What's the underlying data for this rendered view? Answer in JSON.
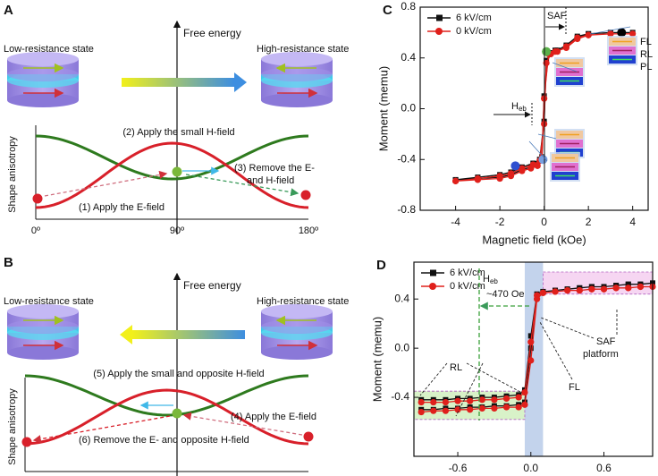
{
  "diagram_a": {
    "label": "A",
    "energy_axis": "Free energy",
    "left_state": "Low-resistance state",
    "right_state": "High-resistance state",
    "vertical_label": "Shape anisotropy",
    "steps": [
      [
        "(1) Apply the E-field"
      ],
      [
        "(2) Apply the small H-field"
      ],
      [
        "(3) Remove the E-",
        "and H-field"
      ]
    ],
    "x_ticks": [
      "0º",
      "90º",
      "180º"
    ]
  },
  "diagram_b": {
    "label": "B",
    "energy_axis": "Free energy",
    "left_state": "Low-resistance state",
    "right_state": "High-resistance state",
    "vertical_label": "Shape anisotropy",
    "steps": [
      [
        "(4) Apply the E-field"
      ],
      [
        "(5) Apply the small and opposite H-field"
      ],
      [
        "(6) Remove the E- and opposite H-field"
      ]
    ],
    "x_ticks": [
      "0º",
      "90º",
      "180º"
    ]
  },
  "chart_data": [
    {
      "type": "line",
      "label": "C",
      "x_label": "Magnetic field (kOe)",
      "y_label": "Moment (memu)",
      "xlim": [
        -5.6,
        4.7
      ],
      "ylim": [
        -0.8,
        0.8
      ],
      "xticks": [
        -4,
        -2,
        0,
        2,
        4
      ],
      "yticks": [
        -0.8,
        -0.4,
        {
          "value": 0,
          "label": "0.0"
        },
        0.4,
        0.8
      ],
      "legend": "upper left",
      "x": [
        -4,
        -3,
        -2,
        -1.5,
        -1,
        -0.5,
        -0.2,
        0,
        0.1,
        0.3,
        0.6,
        1,
        1.5,
        2,
        3,
        4,
        3,
        2,
        1.5,
        1,
        0.5,
        0.2,
        0,
        -0.1,
        -0.3,
        -0.6,
        -1,
        -1.5,
        -2,
        -3,
        -4
      ],
      "series": [
        {
          "name": "6 kV/cm",
          "color": "#111111",
          "marker": "square",
          "values": [
            -0.56,
            -0.54,
            -0.52,
            -0.5,
            -0.46,
            -0.43,
            -0.4,
            -0.1,
            0.38,
            0.44,
            0.46,
            0.5,
            0.57,
            0.59,
            0.6,
            0.6,
            0.6,
            0.59,
            0.56,
            0.49,
            0.46,
            0.44,
            0.1,
            -0.38,
            -0.44,
            -0.46,
            -0.48,
            -0.52,
            -0.54,
            -0.55,
            -0.56
          ]
        },
        {
          "name": "0 kV/cm",
          "color": "#e0201b",
          "marker": "circle",
          "values": [
            -0.57,
            -0.55,
            -0.53,
            -0.51,
            -0.47,
            -0.44,
            -0.41,
            -0.12,
            0.36,
            0.43,
            0.45,
            0.49,
            0.56,
            0.58,
            0.59,
            0.59,
            0.59,
            0.58,
            0.55,
            0.48,
            0.45,
            0.43,
            0.08,
            -0.39,
            -0.45,
            -0.47,
            -0.49,
            -0.53,
            -0.55,
            -0.56,
            -0.57
          ]
        }
      ],
      "highlights": [
        {
          "x": 3.5,
          "y": 0.6,
          "color": "#000000"
        },
        {
          "x": 0.1,
          "y": 0.45,
          "color": "#5ab04a"
        },
        {
          "x": -0.05,
          "y": -0.4,
          "color": "#7aa0e0"
        },
        {
          "x": -1.3,
          "y": -0.45,
          "color": "#3050d0"
        }
      ],
      "annotations": {
        "saf": "SAF",
        "heb_main": "H",
        "heb_sub": "eb",
        "fl": "FL",
        "rl": "RL",
        "pl": "PL"
      }
    },
    {
      "type": "line",
      "label": "D",
      "x_label": "Magnetic field (kOe)",
      "y_label": "Moment (memu)",
      "xlim": [
        -0.96,
        1.0
      ],
      "ylim": [
        -0.88,
        0.7
      ],
      "xticks": [
        -0.6,
        {
          "value": 0,
          "label": "0.0"
        },
        0.6
      ],
      "yticks": [
        -0.4,
        {
          "value": 0,
          "label": "0.0"
        },
        0.4
      ],
      "legend": "upper left",
      "x": [
        -0.9,
        -0.8,
        -0.7,
        -0.6,
        -0.5,
        -0.4,
        -0.3,
        -0.2,
        -0.1,
        -0.05,
        0,
        0.05,
        0.1,
        0.2,
        0.3,
        0.4,
        0.5,
        0.6,
        0.7,
        0.8,
        0.9,
        1.0,
        0.9,
        0.8,
        0.7,
        0.6,
        0.5,
        0.4,
        0.3,
        0.2,
        0.1,
        0.05,
        0,
        -0.05,
        -0.1,
        -0.2,
        -0.3,
        -0.4,
        -0.5,
        -0.6,
        -0.7,
        -0.8,
        -0.9
      ],
      "series": [
        {
          "name": "6 kV/cm",
          "color": "#111111",
          "marker": "square",
          "values": [
            -0.5,
            -0.5,
            -0.49,
            -0.49,
            -0.48,
            -0.48,
            -0.47,
            -0.47,
            -0.46,
            -0.44,
            0.0,
            0.42,
            0.46,
            0.47,
            0.48,
            0.49,
            0.5,
            0.5,
            0.51,
            0.52,
            0.52,
            0.53,
            0.52,
            0.52,
            0.51,
            0.5,
            0.5,
            0.49,
            0.48,
            0.47,
            0.46,
            0.44,
            0.1,
            -0.34,
            -0.38,
            -0.39,
            -0.4,
            -0.4,
            -0.41,
            -0.41,
            -0.42,
            -0.42,
            -0.42
          ]
        },
        {
          "name": "0 kV/cm",
          "color": "#e0201b",
          "marker": "circle",
          "values": [
            -0.52,
            -0.51,
            -0.51,
            -0.5,
            -0.5,
            -0.49,
            -0.49,
            -0.48,
            -0.48,
            -0.46,
            -0.1,
            0.4,
            0.45,
            0.46,
            0.47,
            0.47,
            0.48,
            0.48,
            0.49,
            0.49,
            0.5,
            0.5,
            0.5,
            0.49,
            0.49,
            0.48,
            0.48,
            0.47,
            0.47,
            0.46,
            0.45,
            0.43,
            0.05,
            -0.36,
            -0.4,
            -0.41,
            -0.42,
            -0.42,
            -0.43,
            -0.43,
            -0.44,
            -0.44,
            -0.44
          ]
        }
      ],
      "regions": [
        {
          "x": [
            -0.05,
            0.1
          ],
          "color": "#c3d3ec"
        },
        {
          "x": [
            0.1,
            1.0
          ],
          "y": [
            0.44,
            0.62
          ],
          "color": "#f6d6f2"
        },
        {
          "x": [
            -0.96,
            -0.05
          ],
          "y": [
            -0.58,
            -0.35
          ],
          "color": "#d8f2c8"
        }
      ],
      "annotations": {
        "heb_main": "H",
        "heb_sub": "eb",
        "shift": "~470 Oe",
        "rl": "RL",
        "fl": "FL",
        "saf": "SAF",
        "platform": "platform"
      }
    }
  ]
}
